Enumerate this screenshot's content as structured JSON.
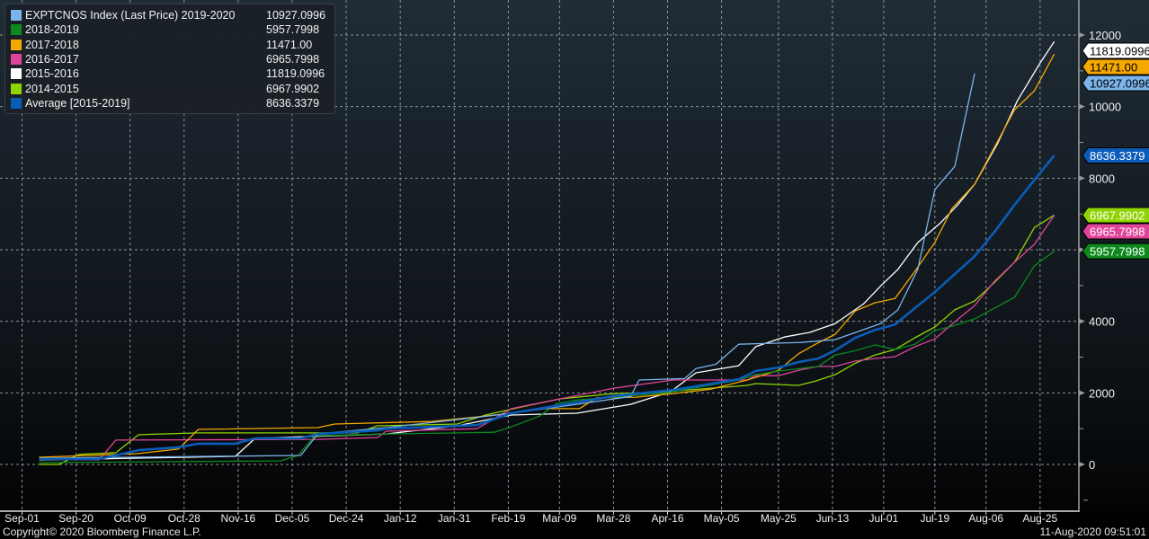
{
  "chart_data": {
    "type": "line",
    "title": "",
    "xlabel": "",
    "ylabel": "",
    "ylim": [
      -1000,
      12500
    ],
    "y_ticks": [
      0,
      2000,
      4000,
      6000,
      8000,
      10000,
      12000
    ],
    "y_tick_labels": [
      "0",
      "2000",
      "4000",
      "",
      "8000",
      "10000",
      "12000"
    ],
    "x_tick_labels": [
      "Sep-01",
      "Sep-20",
      "Oct-09",
      "Oct-28",
      "Nov-16",
      "Dec-05",
      "Dec-24",
      "Jan-12",
      "Jan-31",
      "Feb-19",
      "Mar-09",
      "Mar-28",
      "Apr-16",
      "May-05",
      "May-25",
      "Jun-13",
      "Jul-01",
      "Jul-19",
      "Aug-06",
      "Aug-25"
    ],
    "grid": true,
    "legend_position": "top-left",
    "y_axis_side": "right",
    "series": [
      {
        "name": "EXPTCNOS Index (Last Price) 2019-2020",
        "last": "10927.0996",
        "color": "#7ab4ea",
        "width": 1.3,
        "x": [
          "Sep-07",
          "Dec-08",
          "Dec-14",
          "Jan-07",
          "Feb-01",
          "Feb-20",
          "Mar-15",
          "Apr-03",
          "Apr-06",
          "Apr-22",
          "Apr-26",
          "May-03",
          "May-11",
          "Jun-02",
          "Jun-14",
          "Jun-30",
          "Jul-06",
          "Jul-13",
          "Jul-19",
          "Jul-26",
          "Aug-02"
        ],
        "y": [
          175,
          250,
          850,
          1030,
          1250,
          1430,
          1680,
          1900,
          2360,
          2400,
          2680,
          2800,
          3360,
          3410,
          3490,
          3940,
          4320,
          5450,
          7680,
          8330,
          10927.0996
        ]
      },
      {
        "name": "2018-2019",
        "last": "5957.7998",
        "color": "#0c8a1c",
        "width": 1.3,
        "x": [
          "Sep-07",
          "Dec-01",
          "Dec-07",
          "Dec-13",
          "Jan-07",
          "Feb-01",
          "Feb-14",
          "Feb-20",
          "Mar-02",
          "Mar-08",
          "Mar-15",
          "Apr-16",
          "May-11",
          "May-17",
          "May-25",
          "Jun-08",
          "Jun-14",
          "Jun-20",
          "Jun-28",
          "Jul-05",
          "Jul-12",
          "Jul-19",
          "Jul-25",
          "Aug-02",
          "Aug-09",
          "Aug-16",
          "Aug-23",
          "Aug-30"
        ],
        "y": [
          50,
          100,
          250,
          800,
          850,
          880,
          900,
          1050,
          1350,
          1700,
          1800,
          2000,
          2360,
          2510,
          2610,
          2740,
          3060,
          3160,
          3340,
          3210,
          3360,
          3740,
          3860,
          4070,
          4370,
          4670,
          5550,
          5957.7998
        ]
      },
      {
        "name": "2017-2018",
        "last": "11471.00",
        "color": "#f5a800",
        "width": 1.3,
        "x": [
          "Sep-07",
          "Oct-11",
          "Oct-26",
          "Nov-02",
          "Dec-14",
          "Dec-20",
          "Jan-23",
          "Feb-17",
          "Mar-02",
          "Mar-16",
          "Mar-22",
          "Apr-05",
          "Apr-18",
          "May-01",
          "May-14",
          "May-25",
          "Jun-01",
          "Jun-07",
          "Jun-14",
          "Jun-21",
          "Jun-28",
          "Jul-05",
          "Jul-12",
          "Jul-19",
          "Jul-25",
          "Aug-02",
          "Aug-16",
          "Aug-23",
          "Aug-30"
        ],
        "y": [
          200,
          300,
          430,
          980,
          1030,
          1130,
          1200,
          1400,
          1560,
          1560,
          1860,
          1880,
          1980,
          2100,
          2360,
          2630,
          3090,
          3360,
          3640,
          4290,
          4520,
          4640,
          5400,
          6200,
          7150,
          7830,
          9910,
          10440,
          11471
        ]
      },
      {
        "name": "2016-2017",
        "last": "6965.7998",
        "color": "#e0449a",
        "width": 1.3,
        "x": [
          "Sep-07",
          "Sep-28",
          "Oct-04",
          "Dec-14",
          "Jan-04",
          "Jan-07",
          "Feb-08",
          "Feb-20",
          "Mar-11",
          "Mar-28",
          "Apr-18",
          "May-14",
          "May-17",
          "May-25",
          "Jun-01",
          "Jun-08",
          "Jun-14",
          "Jun-21",
          "Jun-28",
          "Jul-05",
          "Jul-12",
          "Jul-19",
          "Jul-26",
          "Aug-02",
          "Aug-09",
          "Aug-16",
          "Aug-23",
          "Aug-30"
        ],
        "y": [
          150,
          125,
          680,
          700,
          750,
          930,
          1000,
          1560,
          1860,
          2130,
          2360,
          2360,
          2480,
          2480,
          2630,
          2740,
          2740,
          2890,
          2960,
          3010,
          3290,
          3510,
          3990,
          4440,
          5120,
          5650,
          6150,
          6965.7998
        ]
      },
      {
        "name": "2015-2016",
        "last": "11819.0996",
        "color": "#ffffff",
        "width": 1.3,
        "x": [
          "Sep-07",
          "Nov-15",
          "Nov-22",
          "Jan-07",
          "Feb-01",
          "Feb-20",
          "Mar-15",
          "Apr-03",
          "Apr-17",
          "Apr-26",
          "May-11",
          "May-17",
          "May-27",
          "Jun-05",
          "Jun-14",
          "Jun-24",
          "Jun-30",
          "Jul-06",
          "Jul-13",
          "Jul-21",
          "Jul-27",
          "Aug-02",
          "Aug-10",
          "Aug-17",
          "Aug-25",
          "Aug-30"
        ],
        "y": [
          125,
          225,
          730,
          850,
          1080,
          1380,
          1430,
          1680,
          2030,
          2560,
          2760,
          3290,
          3560,
          3690,
          3940,
          4490,
          4990,
          5450,
          6200,
          6750,
          7250,
          7830,
          8960,
          10160,
          11220,
          11819.0996
        ]
      },
      {
        "name": "2014-2015",
        "last": "6967.9902",
        "color": "#8fd400",
        "width": 1.3,
        "x": [
          "Sep-07",
          "Sep-14",
          "Sep-21",
          "Oct-04",
          "Oct-12",
          "Nov-02",
          "Dec-28",
          "Jan-04",
          "Feb-01",
          "Feb-11",
          "Feb-22",
          "Mar-09",
          "Mar-28",
          "Apr-12",
          "May-14",
          "May-17",
          "Jun-01",
          "Jun-07",
          "Jun-14",
          "Jun-21",
          "Jun-28",
          "Jul-05",
          "Jul-12",
          "Jul-19",
          "Jul-26",
          "Aug-02",
          "Aug-09",
          "Aug-16",
          "Aug-23",
          "Aug-30"
        ],
        "y": [
          0,
          0,
          280,
          330,
          830,
          880,
          880,
          1080,
          1130,
          1380,
          1580,
          1830,
          1980,
          2010,
          2210,
          2260,
          2210,
          2330,
          2510,
          2830,
          3060,
          3210,
          3540,
          3840,
          4320,
          4570,
          5090,
          5650,
          6620,
          6967.9902
        ]
      },
      {
        "name": "Average [2015-2019]",
        "last": "8636.3379",
        "color": "#0a5cb8",
        "width": 2.6,
        "x": [
          "Sep-07",
          "Sep-28",
          "Oct-12",
          "Oct-26",
          "Nov-02",
          "Nov-15",
          "Nov-22",
          "Dec-08",
          "Dec-14",
          "Jan-04",
          "Jan-07",
          "Feb-08",
          "Feb-20",
          "Mar-11",
          "Mar-28",
          "Apr-18",
          "May-11",
          "May-17",
          "May-25",
          "Jun-01",
          "Jun-08",
          "Jun-14",
          "Jun-21",
          "Jun-28",
          "Jul-05",
          "Jul-12",
          "Jul-19",
          "Jul-26",
          "Aug-02",
          "Aug-09",
          "Aug-16",
          "Aug-23",
          "Aug-30"
        ],
        "y": [
          150,
          150,
          400,
          480,
          580,
          580,
          730,
          730,
          850,
          950,
          1000,
          1100,
          1430,
          1680,
          1910,
          2080,
          2380,
          2610,
          2710,
          2860,
          2960,
          3190,
          3540,
          3760,
          3910,
          4370,
          4820,
          5320,
          5820,
          6500,
          7250,
          7950,
          8636.3379
        ]
      }
    ]
  },
  "legend": {
    "items": [
      {
        "label": "EXPTCNOS Index (Last Price) 2019-2020",
        "value": "10927.0996",
        "color": "#7ab4ea"
      },
      {
        "label": "2018-2019",
        "value": "5957.7998",
        "color": "#0c8a1c"
      },
      {
        "label": "2017-2018",
        "value": "11471.00",
        "color": "#f5a800"
      },
      {
        "label": "2016-2017",
        "value": "6965.7998",
        "color": "#e0449a"
      },
      {
        "label": "2015-2016",
        "value": "11819.0996",
        "color": "#ffffff"
      },
      {
        "label": "2014-2015",
        "value": "6967.9902",
        "color": "#8fd400"
      },
      {
        "label": "Average [2015-2019]",
        "value": "8636.3379",
        "color": "#0a5cb8"
      }
    ]
  },
  "footer": {
    "copyright": "Copyright© 2020 Bloomberg Finance L.P.",
    "timestamp": "11-Aug-2020 09:51:01"
  },
  "colors": {
    "background_top": "#1f2b35",
    "background_bottom": "#000000",
    "grid": "#9a9a9a",
    "axis": "#c8c8c8",
    "text": "#f0f0f0"
  }
}
